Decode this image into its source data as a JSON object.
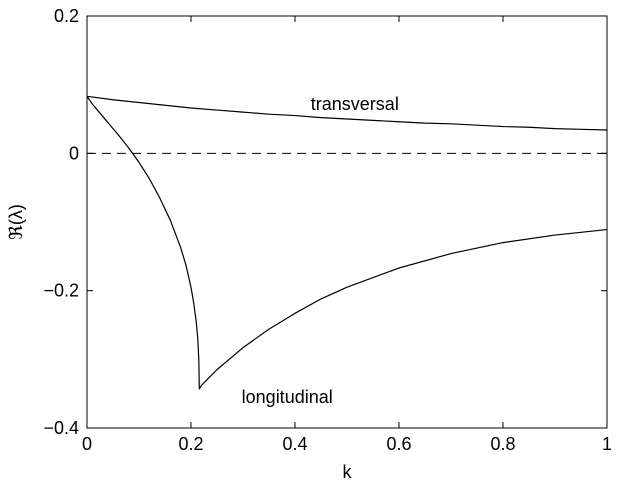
{
  "chart_data": {
    "type": "line",
    "xlabel": "k",
    "ylabel": "ℜ(λ)",
    "xlim": [
      0,
      1
    ],
    "ylim": [
      -0.4,
      0.2
    ],
    "x_ticks": [
      "0",
      "0.2",
      "0.4",
      "0.6",
      "0.8",
      "1"
    ],
    "y_ticks": [
      "−0.4",
      "−0.2",
      "0",
      "0.2"
    ],
    "x_tick_values": [
      0,
      0.2,
      0.4,
      0.6,
      0.8,
      1
    ],
    "y_tick_values": [
      -0.4,
      -0.2,
      0,
      0.2
    ],
    "grid": false,
    "series": [
      {
        "name": "transversal",
        "color": "#000000",
        "style": "solid",
        "x": [
          0,
          0.05,
          0.1,
          0.15,
          0.2,
          0.25,
          0.3,
          0.35,
          0.4,
          0.45,
          0.5,
          0.55,
          0.6,
          0.65,
          0.7,
          0.75,
          0.8,
          0.85,
          0.9,
          0.95,
          1.0
        ],
        "y": [
          0.083,
          0.078,
          0.074,
          0.07,
          0.066,
          0.063,
          0.06,
          0.057,
          0.055,
          0.052,
          0.05,
          0.048,
          0.046,
          0.044,
          0.043,
          0.041,
          0.039,
          0.038,
          0.036,
          0.035,
          0.034
        ]
      },
      {
        "name": "longitudinal",
        "color": "#000000",
        "style": "solid",
        "x": [
          0,
          0.01,
          0.02,
          0.04,
          0.06,
          0.08,
          0.1,
          0.12,
          0.14,
          0.16,
          0.18,
          0.19,
          0.2,
          0.205,
          0.21,
          0.213,
          0.215,
          0.216,
          0.22,
          0.25,
          0.3,
          0.35,
          0.4,
          0.45,
          0.5,
          0.6,
          0.7,
          0.8,
          0.9,
          1.0
        ],
        "y": [
          0.083,
          0.072,
          0.063,
          0.045,
          0.027,
          0.008,
          -0.013,
          -0.037,
          -0.065,
          -0.097,
          -0.137,
          -0.162,
          -0.195,
          -0.217,
          -0.245,
          -0.27,
          -0.3,
          -0.343,
          -0.338,
          -0.315,
          -0.283,
          -0.256,
          -0.233,
          -0.212,
          -0.195,
          -0.167,
          -0.146,
          -0.13,
          -0.119,
          -0.111
        ]
      }
    ],
    "reference_lines": [
      {
        "y": 0,
        "style": "dashed",
        "color": "#000000"
      }
    ],
    "annotations": [
      {
        "text": "transversal",
        "x": 0.515,
        "y": 0.072
      },
      {
        "text": "longitudinal",
        "x": 0.385,
        "y": -0.355
      }
    ]
  }
}
